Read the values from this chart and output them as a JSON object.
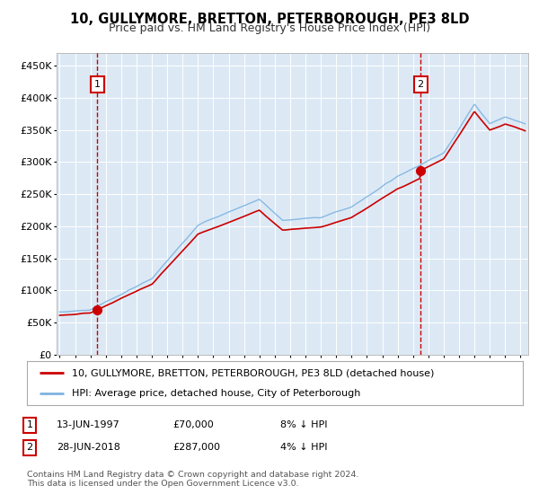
{
  "title": "10, GULLYMORE, BRETTON, PETERBOROUGH, PE3 8LD",
  "subtitle": "Price paid vs. HM Land Registry's House Price Index (HPI)",
  "bg_color": "#dce9f5",
  "grid_color": "#ffffff",
  "fig_bg_color": "#ffffff",
  "ylim": [
    0,
    470000
  ],
  "yticks": [
    0,
    50000,
    100000,
    150000,
    200000,
    250000,
    300000,
    350000,
    400000,
    450000
  ],
  "sale1_date": 1997.45,
  "sale1_price": 70000,
  "sale2_date": 2018.49,
  "sale2_price": 287000,
  "red_line_color": "#cc0000",
  "blue_line_color": "#7fb3e0",
  "dashed_line_color": "#cc0000",
  "annotation_box_color": "#cc0000",
  "legend_line1": "10, GULLYMORE, BRETTON, PETERBOROUGH, PE3 8LD (detached house)",
  "legend_line2": "HPI: Average price, detached house, City of Peterborough",
  "note1_date": "13-JUN-1997",
  "note1_price": "£70,000",
  "note1_hpi": "8% ↓ HPI",
  "note2_date": "28-JUN-2018",
  "note2_price": "£287,000",
  "note2_hpi": "4% ↓ HPI",
  "footer": "Contains HM Land Registry data © Crown copyright and database right 2024.\nThis data is licensed under the Open Government Licence v3.0.",
  "xmin": 1994.8,
  "xmax": 2025.5
}
